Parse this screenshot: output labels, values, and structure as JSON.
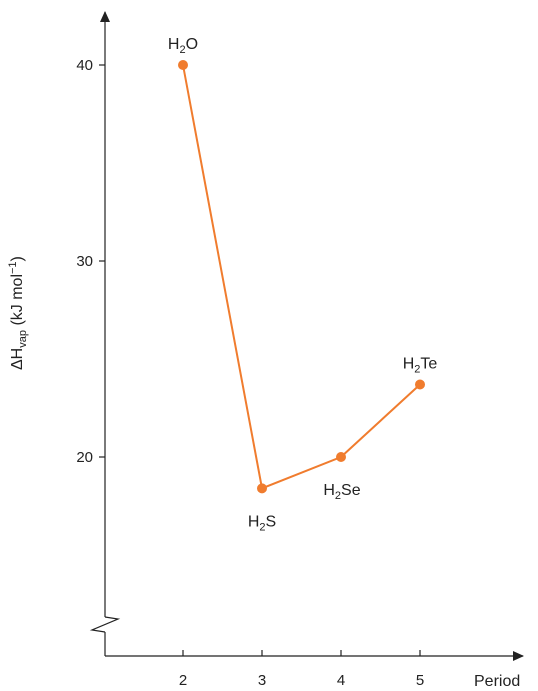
{
  "chart_data": {
    "type": "line",
    "xlabel": "Period",
    "ylabel": {
      "base": "ΔH",
      "sub": "vap",
      "rest": " (kJ mol",
      "sup": "−1",
      "end": ")"
    },
    "x_ticks": [
      2,
      3,
      4,
      5
    ],
    "y_ticks": [
      20,
      30,
      40
    ],
    "y_axis_break": true,
    "grid": false,
    "legend": "none",
    "series": [
      {
        "color": "#F07C2E",
        "points": [
          {
            "x": 2,
            "y": 40.0,
            "label": {
              "base": "H",
              "sub": "2",
              "tail": "O"
            }
          },
          {
            "x": 3,
            "y": 18.4,
            "label": {
              "base": "H",
              "sub": "2",
              "tail": "S"
            }
          },
          {
            "x": 4,
            "y": 20.0,
            "label": {
              "base": "H",
              "sub": "2",
              "tail": "Se"
            }
          },
          {
            "x": 5,
            "y": 23.7,
            "label": {
              "base": "H",
              "sub": "2",
              "tail": "Te"
            }
          }
        ]
      }
    ]
  }
}
